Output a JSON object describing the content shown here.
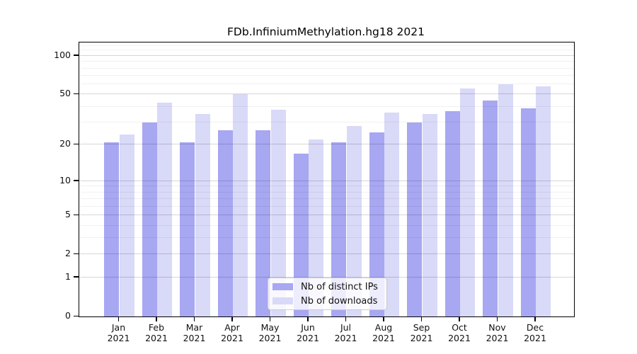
{
  "chart_data": {
    "type": "bar",
    "title": "FDb.InfiniumMethylation.hg18 2021",
    "categories": [
      "Jan",
      "Feb",
      "Mar",
      "Apr",
      "May",
      "Jun",
      "Jul",
      "Aug",
      "Sep",
      "Oct",
      "Nov",
      "Dec"
    ],
    "year_label": "2021",
    "series": [
      {
        "name": "Nb of distinct IPs",
        "color": "#a7a7f2",
        "values": [
          21,
          30,
          21,
          26,
          26,
          17,
          21,
          25,
          30,
          37,
          45,
          39
        ]
      },
      {
        "name": "Nb of downloads",
        "color": "#d9d9f8",
        "values": [
          24,
          43,
          35,
          50,
          38,
          22,
          28,
          36,
          35,
          56,
          60,
          58
        ]
      }
    ],
    "xlabel": "",
    "ylabel": "",
    "yscale": "log1p",
    "ylim": [
      0,
      127
    ],
    "y_major_ticks": [
      0,
      1,
      2,
      5,
      10,
      20,
      50,
      100
    ],
    "y_minor_gridlines": [
      3,
      4,
      6,
      7,
      8,
      9,
      30,
      40,
      60,
      70,
      80,
      90,
      110,
      120
    ],
    "grid": "on",
    "legend_position": "bottom-center",
    "axis_color": "#000000",
    "background_color": "#ffffff"
  },
  "legend": {
    "items": [
      {
        "label": "Nb of distinct IPs",
        "color": "#a7a7f2"
      },
      {
        "label": "Nb of downloads",
        "color": "#d9d9f8"
      }
    ]
  }
}
